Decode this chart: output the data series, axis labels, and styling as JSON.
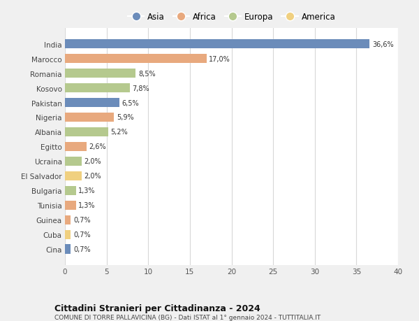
{
  "categories": [
    "India",
    "Marocco",
    "Romania",
    "Kosovo",
    "Pakistan",
    "Nigeria",
    "Albania",
    "Egitto",
    "Ucraina",
    "El Salvador",
    "Bulgaria",
    "Tunisia",
    "Guinea",
    "Cuba",
    "Cina"
  ],
  "values": [
    36.6,
    17.0,
    8.5,
    7.8,
    6.5,
    5.9,
    5.2,
    2.6,
    2.0,
    2.0,
    1.3,
    1.3,
    0.7,
    0.7,
    0.7
  ],
  "labels": [
    "36,6%",
    "17,0%",
    "8,5%",
    "7,8%",
    "6,5%",
    "5,9%",
    "5,2%",
    "2,6%",
    "2,0%",
    "2,0%",
    "1,3%",
    "1,3%",
    "0,7%",
    "0,7%",
    "0,7%"
  ],
  "regions": [
    "Asia",
    "Africa",
    "Europa",
    "Europa",
    "Asia",
    "Africa",
    "Europa",
    "Africa",
    "Europa",
    "America",
    "Europa",
    "Africa",
    "Africa",
    "America",
    "Asia"
  ],
  "colors": {
    "Asia": "#6b8cba",
    "Africa": "#e8a97e",
    "Europa": "#b5c98e",
    "America": "#f0d080"
  },
  "title": "Cittadini Stranieri per Cittadinanza - 2024",
  "subtitle": "COMUNE DI TORRE PALLAVICINA (BG) - Dati ISTAT al 1° gennaio 2024 - TUTTITALIA.IT",
  "xlim": [
    0,
    40
  ],
  "xticks": [
    0,
    5,
    10,
    15,
    20,
    25,
    30,
    35,
    40
  ],
  "background_color": "#f0f0f0",
  "bar_background": "#ffffff",
  "grid_color": "#d8d8d8",
  "legend_order": [
    "Asia",
    "Africa",
    "Europa",
    "America"
  ]
}
